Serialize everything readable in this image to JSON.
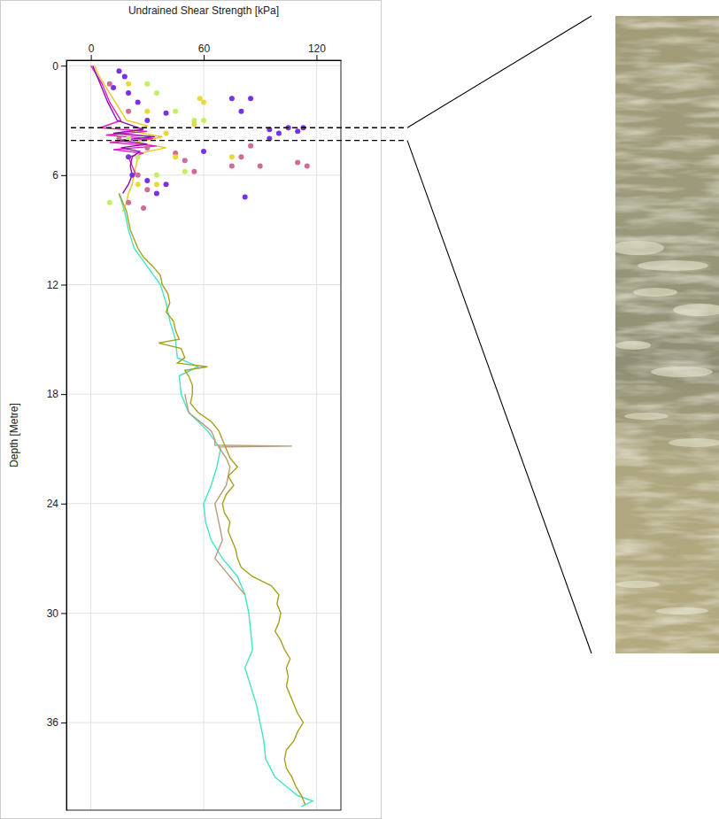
{
  "chart_data": {
    "type": "scatter",
    "x_label": "Undrained Shear Strength [kPa]",
    "y_label": "Depth [Metre]",
    "xlim": [
      -13,
      133
    ],
    "xticks": [
      0,
      60,
      120
    ],
    "ylim": [
      40.8,
      -0.3
    ],
    "yticks": [
      0,
      6,
      12,
      18,
      24,
      30,
      36
    ],
    "grid": true,
    "highlight_depth": [
      3.4,
      4.1
    ],
    "series": [
      {
        "type": "line",
        "color": "#40e6c4",
        "line_style": "solid",
        "x": [
          15,
          18,
          20,
          23,
          30,
          37,
          40,
          42,
          45,
          46,
          57,
          47,
          48,
          52,
          62,
          69,
          67,
          64,
          60,
          61,
          64,
          70,
          78,
          82,
          84,
          85,
          86,
          82,
          85,
          88,
          90,
          92,
          93,
          98,
          104,
          110,
          118,
          112
        ],
        "values": [
          7,
          8,
          9,
          10,
          11,
          12,
          13,
          14,
          15,
          16,
          16.5,
          17,
          18,
          19,
          20,
          21,
          22,
          23,
          24,
          25,
          26,
          27,
          28,
          29,
          30,
          31,
          32,
          33,
          34,
          35,
          36,
          37,
          38,
          39,
          39.5,
          40,
          40.3,
          40.6
        ]
      },
      {
        "type": "line",
        "color": "#bb9c7a",
        "line_style": "solid",
        "x": [
          50,
          52,
          64,
          66,
          66,
          107,
          68,
          72,
          74,
          72,
          66,
          68,
          70,
          66,
          70,
          74,
          82
        ],
        "values": [
          18,
          19,
          20,
          20.5,
          20.8,
          20.85,
          20.9,
          21.5,
          22,
          23,
          24,
          25,
          26,
          27,
          27.5,
          28,
          29
        ]
      },
      {
        "type": "line",
        "color": "#a7a01c",
        "line_style": "solid",
        "x": [
          15,
          17,
          19,
          20,
          21,
          23,
          25,
          28,
          33,
          37,
          38,
          41,
          42,
          40,
          44,
          45,
          47,
          36,
          48,
          50,
          46,
          62,
          50,
          52,
          54,
          54,
          53,
          57,
          64,
          68,
          70,
          72,
          74,
          78,
          73,
          76,
          72,
          70,
          71,
          74,
          73,
          75,
          77,
          78,
          80,
          86,
          96,
          100,
          99,
          101,
          100,
          98,
          101,
          103,
          106,
          104,
          105,
          104,
          106,
          108,
          110,
          113,
          110,
          108,
          104,
          103,
          104,
          107,
          109,
          112,
          114
        ],
        "values": [
          7,
          7.5,
          8,
          8.5,
          9,
          9.5,
          10,
          10.5,
          11,
          11.5,
          12,
          12.5,
          13,
          13.5,
          14,
          14.5,
          15,
          15.2,
          15.5,
          16,
          16.3,
          16.5,
          16.7,
          17,
          17.5,
          18,
          18.5,
          19,
          19.5,
          20,
          20.5,
          21,
          21.5,
          22,
          22.5,
          23,
          23.5,
          24,
          24.5,
          25,
          25.5,
          26,
          26.5,
          27,
          27.5,
          28,
          28.5,
          29,
          29.5,
          30,
          30.5,
          31,
          31.5,
          32,
          32.5,
          33,
          33.5,
          34,
          34.5,
          35,
          35.5,
          36,
          36.5,
          37,
          37.5,
          38,
          38.5,
          39,
          39.5,
          40,
          40.5
        ]
      },
      {
        "type": "line",
        "color": "#e8c81a",
        "line_style": "solid",
        "x": [
          2,
          4,
          7,
          10,
          13,
          16,
          19,
          30,
          22,
          38,
          24,
          40,
          26,
          25,
          24,
          23,
          22,
          20,
          19,
          17
        ],
        "values": [
          0,
          0.5,
          1,
          1.5,
          2,
          2.5,
          3,
          3.3,
          3.6,
          3.9,
          4.2,
          4.5,
          4.8,
          5,
          5.5,
          6,
          6.5,
          7,
          7.5,
          8
        ]
      },
      {
        "type": "line",
        "color": "#e020c0",
        "line_style": "solid",
        "x": [
          0,
          3,
          6,
          8,
          10,
          13,
          16,
          5,
          30,
          8,
          33,
          10,
          35,
          12,
          28,
          20,
          22,
          24
        ],
        "values": [
          0,
          0.5,
          1,
          1.5,
          2,
          2.5,
          3,
          3.4,
          3.6,
          3.8,
          4,
          4.2,
          4.4,
          4.6,
          4.8,
          5,
          5.5,
          6
        ]
      },
      {
        "type": "line",
        "color": "#8a10b0",
        "line_style": "solid",
        "x": [
          1,
          5,
          9,
          14,
          28,
          12,
          34,
          14,
          30,
          16,
          26,
          22,
          21,
          22,
          20,
          17
        ],
        "values": [
          0,
          1,
          2,
          3,
          3.5,
          3.7,
          3.9,
          4.1,
          4.3,
          4.5,
          4.7,
          5,
          5.5,
          6,
          6.5,
          7
        ]
      },
      {
        "type": "scatter",
        "color": "#7a30e8",
        "marker": "circle",
        "x": [
          15,
          18,
          12,
          20,
          25,
          30,
          40,
          75,
          80,
          85,
          95,
          100,
          105,
          110,
          113,
          95,
          60,
          20,
          22,
          30,
          40,
          35,
          82
        ],
        "values": [
          0.3,
          0.6,
          1.2,
          1.5,
          2,
          3,
          2.6,
          1.8,
          2.5,
          1.8,
          3.5,
          3.7,
          3.4,
          3.6,
          3.4,
          4,
          4.7,
          5,
          6,
          6.3,
          6.5,
          7,
          7.2
        ]
      },
      {
        "type": "scatter",
        "color": "#d06a96",
        "marker": "circle",
        "x": [
          10,
          20,
          30,
          50,
          55,
          75,
          80,
          90,
          110,
          115,
          25,
          30,
          20,
          28,
          85,
          45,
          15
        ],
        "values": [
          1,
          2.5,
          4.5,
          5.2,
          5.8,
          5.5,
          5,
          5.5,
          5.3,
          5.5,
          6,
          6.8,
          7.5,
          7.8,
          4.4,
          4.8,
          4
        ]
      },
      {
        "type": "scatter",
        "color": "#c4f060",
        "marker": "circle",
        "x": [
          30,
          35,
          45,
          55,
          60,
          25,
          35,
          10,
          20,
          50
        ],
        "values": [
          1,
          1.5,
          2.5,
          3,
          3,
          5,
          6,
          7.5,
          4,
          5.8
        ]
      },
      {
        "type": "scatter",
        "color": "#e8d838",
        "marker": "circle",
        "x": [
          20,
          30,
          55,
          60,
          75,
          45,
          25,
          35,
          58,
          40
        ],
        "values": [
          1,
          2.5,
          3.2,
          2,
          5,
          5,
          6.5,
          6.5,
          1.8,
          3.7
        ]
      }
    ]
  }
}
